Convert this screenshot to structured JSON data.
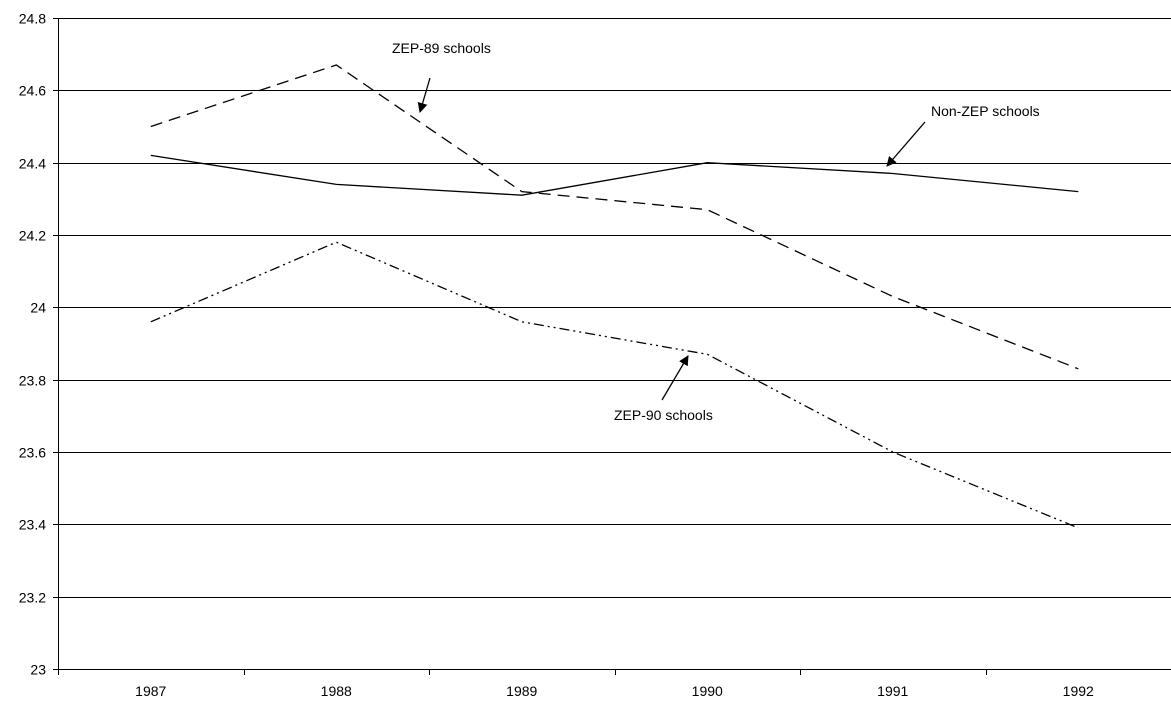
{
  "chart_data": {
    "type": "line",
    "title": "",
    "xlabel": "",
    "ylabel": "",
    "x": [
      "1987",
      "1988",
      "1989",
      "1990",
      "1991",
      "1992"
    ],
    "ylim": [
      23,
      24.8
    ],
    "yticks": [
      "23",
      "23.2",
      "23.4",
      "23.6",
      "23.8",
      "24",
      "24.2",
      "24.4",
      "24.6",
      "24.8"
    ],
    "grid": "horizontal",
    "legend": "none",
    "series": [
      {
        "name": "Non-ZEP schools",
        "style": "solid",
        "values": [
          24.42,
          24.34,
          24.31,
          24.4,
          24.37,
          24.32
        ]
      },
      {
        "name": "ZEP-89 schools",
        "style": "dashed",
        "values": [
          24.5,
          24.67,
          24.32,
          24.27,
          24.03,
          23.83
        ]
      },
      {
        "name": "ZEP-90 schools",
        "style": "dash-dot-dot",
        "values": [
          23.96,
          24.18,
          23.96,
          23.87,
          23.6,
          23.39
        ]
      }
    ],
    "annotations": [
      {
        "text": "ZEP-89 schools",
        "series": "ZEP-89 schools"
      },
      {
        "text": "Non-ZEP schools",
        "series": "Non-ZEP schools"
      },
      {
        "text": "ZEP-90 schools",
        "series": "ZEP-90 schools"
      }
    ],
    "colors": {
      "line": "#000000",
      "background": "#ffffff"
    }
  }
}
